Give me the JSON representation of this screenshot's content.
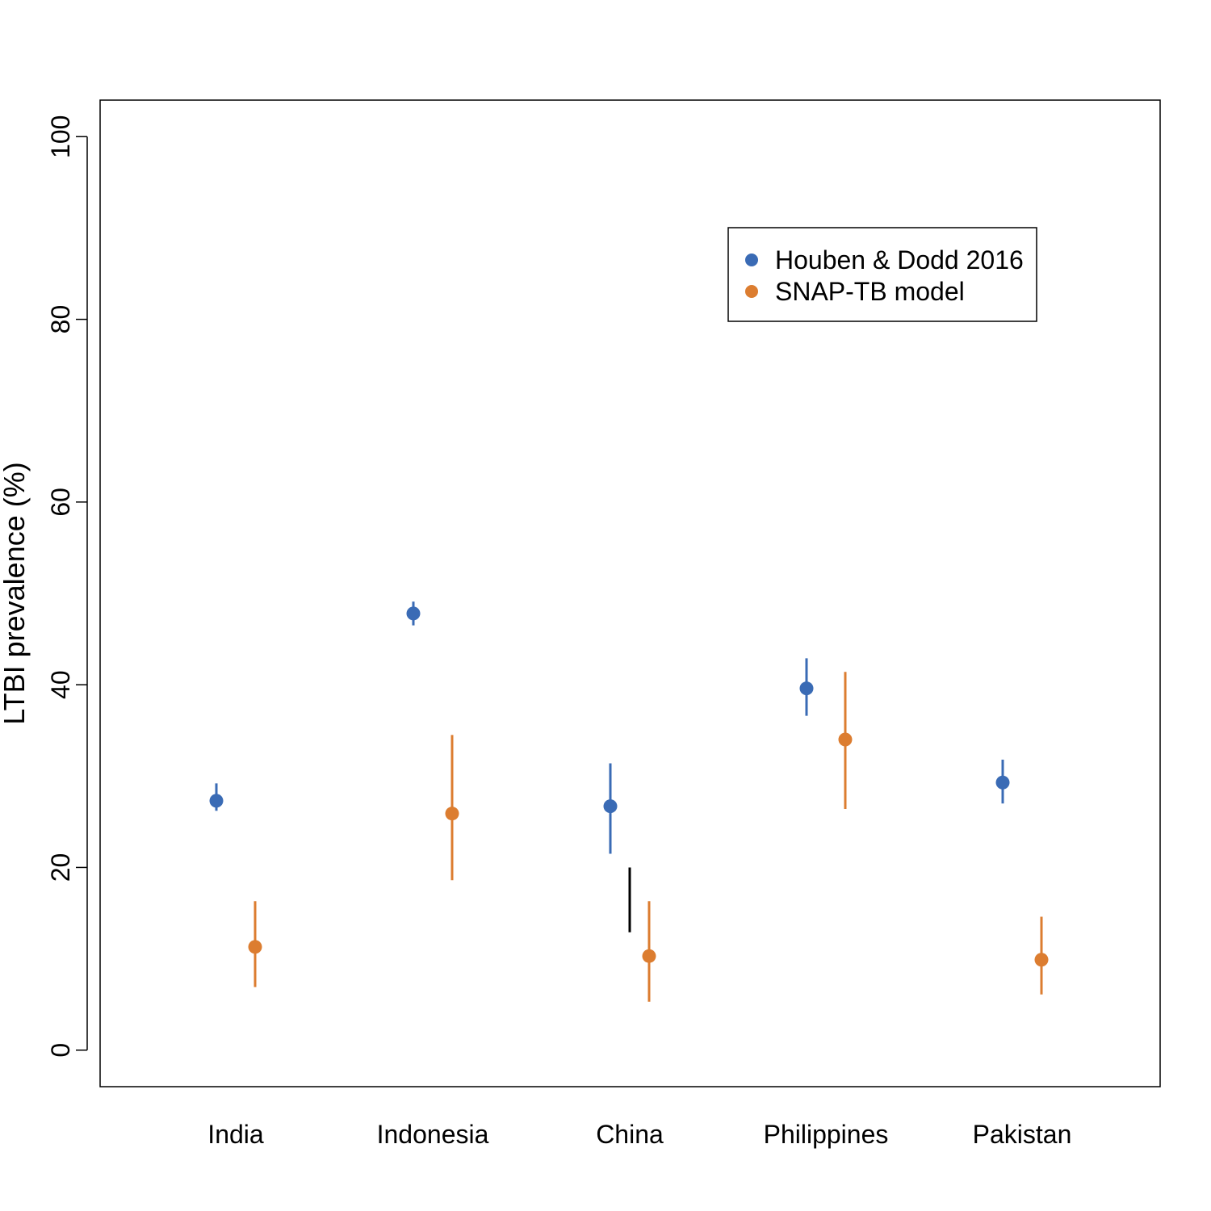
{
  "chart_data": {
    "type": "scatter",
    "title": "",
    "xlabel": "",
    "ylabel": "LTBI prevalence (%)",
    "ylim": [
      -4,
      104
    ],
    "yticks": [
      0,
      20,
      40,
      60,
      80,
      100
    ],
    "grid": false,
    "legend_position": "top-right",
    "categories": [
      "India",
      "Indonesia",
      "China",
      "Philippines",
      "Pakistan"
    ],
    "series": [
      {
        "name": "Houben & Dodd 2016",
        "color": "#3a6bb5",
        "values": [
          27.3,
          47.8,
          26.7,
          39.6,
          29.3
        ],
        "lower": [
          26.2,
          46.5,
          21.5,
          36.6,
          27.0
        ],
        "upper": [
          29.2,
          49.1,
          31.4,
          42.9,
          31.8
        ]
      },
      {
        "name": "SNAP-TB model",
        "color": "#dc7d30",
        "values": [
          11.3,
          25.9,
          10.3,
          34.0,
          9.9
        ],
        "lower": [
          6.9,
          18.6,
          5.3,
          26.4,
          6.1
        ],
        "upper": [
          16.3,
          34.5,
          16.3,
          41.4,
          14.6
        ]
      }
    ],
    "annotations": [
      {
        "type": "vertical-line",
        "category": "China",
        "from": 12.9,
        "to": 20.0,
        "color": "#000000"
      }
    ]
  }
}
